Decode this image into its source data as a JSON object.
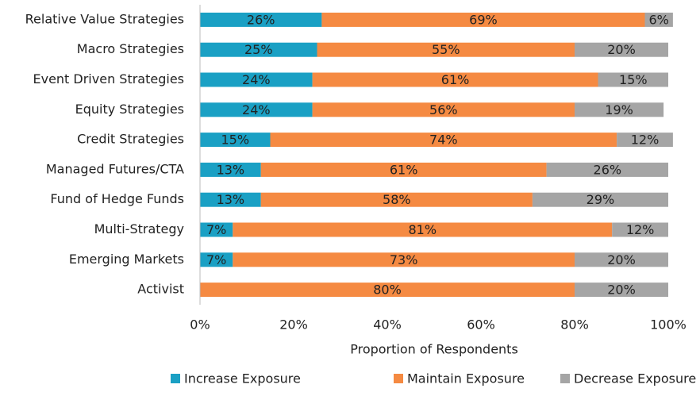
{
  "chart_data": {
    "type": "stacked-bar-horizontal",
    "categories": [
      "Relative Value Strategies",
      "Macro Strategies",
      "Event Driven Strategies",
      "Equity Strategies",
      "Credit Strategies",
      "Managed Futures/CTA",
      "Fund of Hedge Funds",
      "Multi-Strategy",
      "Emerging Markets",
      "Activist"
    ],
    "series": [
      {
        "name": "Increase Exposure",
        "color": "#1aa0c4",
        "values": [
          26,
          25,
          24,
          24,
          15,
          13,
          13,
          7,
          7,
          0
        ],
        "value_labels": [
          "26%",
          "25%",
          "24%",
          "24%",
          "15%",
          "13%",
          "13%",
          "7%",
          "7%",
          null
        ]
      },
      {
        "name": "Maintain Exposure",
        "color": "#f58a42",
        "values": [
          69,
          55,
          61,
          56,
          74,
          61,
          58,
          81,
          73,
          80
        ],
        "value_labels": [
          "69%",
          "55%",
          "61%",
          "56%",
          "74%",
          "61%",
          "58%",
          "81%",
          "73%",
          "80%"
        ]
      },
      {
        "name": "Decrease Exposure",
        "color": "#a5a5a5",
        "values": [
          6,
          20,
          15,
          19,
          12,
          26,
          29,
          12,
          20,
          20
        ],
        "value_labels": [
          "6%",
          "20%",
          "15%",
          "19%",
          "12%",
          "26%",
          "29%",
          "12%",
          "20%",
          "20%"
        ]
      }
    ],
    "xlabel": "Proportion of Respondents",
    "xlim": [
      0,
      100
    ],
    "xticks": [
      {
        "value": 0,
        "label": "0%"
      },
      {
        "value": 20,
        "label": "20%"
      },
      {
        "value": 40,
        "label": "40%"
      },
      {
        "value": 60,
        "label": "60%"
      },
      {
        "value": 80,
        "label": "80%"
      },
      {
        "value": 100,
        "label": "100%"
      }
    ],
    "grid": false,
    "legend": "bottom"
  }
}
